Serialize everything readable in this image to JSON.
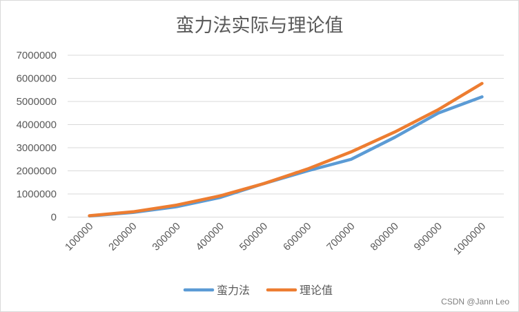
{
  "chart_data": {
    "type": "line",
    "title": "蛮力法实际与理论值",
    "xlabel": "",
    "ylabel": "",
    "categories": [
      "100000",
      "200000",
      "300000",
      "400000",
      "500000",
      "600000",
      "700000",
      "800000",
      "900000",
      "1000000"
    ],
    "ylim": [
      0,
      7000000
    ],
    "yticks": [
      "0",
      "1000000",
      "2000000",
      "3000000",
      "4000000",
      "5000000",
      "6000000",
      "7000000"
    ],
    "grid": true,
    "legend_position": "bottom",
    "series": [
      {
        "name": "蛮力法",
        "color": "#5b9bd5",
        "values": [
          50000,
          200000,
          450000,
          850000,
          1450000,
          2000000,
          2500000,
          3450000,
          4500000,
          5200000
        ]
      },
      {
        "name": "理论值",
        "color": "#ed7d31",
        "values": [
          60000,
          230000,
          520000,
          920000,
          1450000,
          2080000,
          2820000,
          3680000,
          4650000,
          5780000
        ]
      }
    ]
  },
  "watermark": "CSDN @Jann Leo"
}
